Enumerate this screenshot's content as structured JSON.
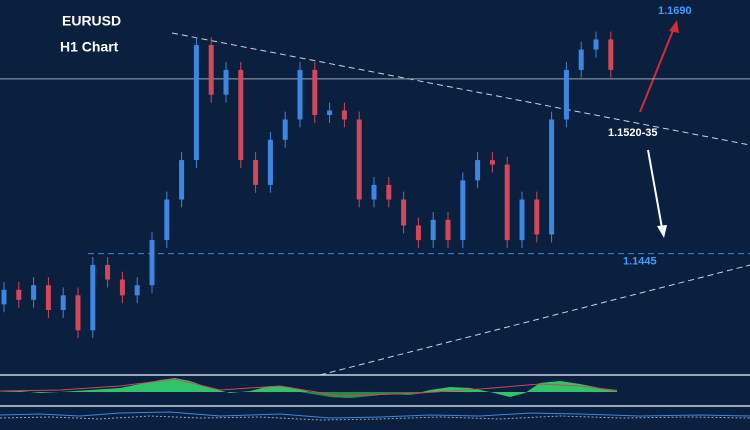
{
  "chart_data": {
    "type": "candlestick",
    "title": "EURUSD",
    "subtitle": "H1 Chart",
    "categories": [
      null,
      null,
      null,
      null,
      null,
      null,
      null,
      null,
      null,
      null,
      null,
      null,
      null,
      null,
      null,
      null,
      null,
      null,
      null,
      null,
      null,
      null,
      null,
      null,
      null,
      null,
      null,
      null,
      null,
      null,
      null,
      null,
      null,
      null,
      null,
      null,
      null,
      null,
      null,
      null,
      null,
      null
    ],
    "open": [
      1.14,
      1.1413,
      1.1404,
      1.1417,
      1.1395,
      1.1408,
      1.1377,
      1.1435,
      1.1422,
      1.1408,
      1.1417,
      1.1457,
      1.1493,
      1.1528,
      1.163,
      1.1586,
      1.1608,
      1.1528,
      1.1506,
      1.1546,
      1.1564,
      1.1608,
      1.1568,
      1.1572,
      1.1564,
      1.1493,
      1.1506,
      1.1493,
      1.147,
      1.1457,
      1.1475,
      1.1457,
      1.151,
      1.1528,
      1.1524,
      1.1457,
      1.1493,
      1.1462,
      1.1564,
      1.1608,
      1.1626,
      1.1635
    ],
    "high": [
      1.142,
      1.142,
      1.1424,
      1.1424,
      1.1415,
      1.1415,
      1.1442,
      1.1442,
      1.1429,
      1.1424,
      1.1464,
      1.15,
      1.1535,
      1.1637,
      1.1637,
      1.1615,
      1.1615,
      1.1535,
      1.1553,
      1.1571,
      1.1615,
      1.1615,
      1.1579,
      1.1579,
      1.1571,
      1.1513,
      1.1513,
      1.15,
      1.1477,
      1.1482,
      1.1482,
      1.1517,
      1.1535,
      1.1535,
      1.1531,
      1.15,
      1.15,
      1.1571,
      1.1615,
      1.1633,
      1.1642,
      1.1642
    ],
    "low": [
      1.1393,
      1.1397,
      1.1397,
      1.1388,
      1.1388,
      1.137,
      1.137,
      1.1415,
      1.1401,
      1.1401,
      1.141,
      1.145,
      1.1486,
      1.1521,
      1.1579,
      1.1579,
      1.1521,
      1.1499,
      1.1499,
      1.1539,
      1.1557,
      1.1561,
      1.1561,
      1.1557,
      1.1486,
      1.1486,
      1.1486,
      1.1463,
      1.145,
      1.145,
      1.145,
      1.145,
      1.1503,
      1.1517,
      1.145,
      1.145,
      1.1455,
      1.1455,
      1.1557,
      1.1601,
      1.1619,
      1.1601
    ],
    "close": [
      1.1413,
      1.1404,
      1.1417,
      1.1395,
      1.1408,
      1.1377,
      1.1435,
      1.1422,
      1.1408,
      1.1417,
      1.1457,
      1.1493,
      1.1528,
      1.163,
      1.1586,
      1.1608,
      1.1528,
      1.1506,
      1.1546,
      1.1564,
      1.1608,
      1.1568,
      1.1572,
      1.1564,
      1.1493,
      1.1506,
      1.1493,
      1.147,
      1.1457,
      1.1475,
      1.1457,
      1.151,
      1.1528,
      1.1524,
      1.1457,
      1.1493,
      1.1462,
      1.1564,
      1.1608,
      1.1626,
      1.1635,
      1.1608
    ],
    "up_color": "#3f86e0",
    "down_color": "#d0485a",
    "ylim": [
      1.134,
      1.167
    ],
    "support_level": 1.1445,
    "resistance_level": 1.16,
    "target_label": "1.1690",
    "pivot_label": "1.1520-35"
  }
}
